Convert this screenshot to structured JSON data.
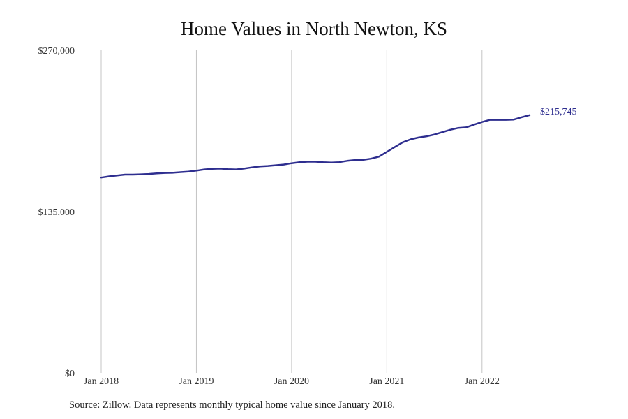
{
  "chart_data": {
    "type": "line",
    "title": "Home Values in North Newton, KS",
    "xlabel": "",
    "ylabel": "",
    "ylim": [
      0,
      270000
    ],
    "y_ticks": [
      0,
      135000,
      270000
    ],
    "y_tick_labels": [
      "$0",
      "$135,000",
      "$270,000"
    ],
    "x_ticks": [
      "2018-01",
      "2019-01",
      "2020-01",
      "2021-01",
      "2022-01"
    ],
    "x_tick_labels": [
      "Jan 2018",
      "Jan 2019",
      "Jan 2020",
      "Jan 2021",
      "Jan 2022"
    ],
    "x_range": [
      "2018-01",
      "2023-03"
    ],
    "grid": "vertical",
    "line_color": "#2e2e8f",
    "end_label": "$215,745",
    "series": [
      {
        "x": [
          "2018-01",
          "2018-02",
          "2018-03",
          "2018-04",
          "2018-05",
          "2018-06",
          "2018-07",
          "2018-08",
          "2018-09",
          "2018-10",
          "2018-11",
          "2018-12",
          "2019-01",
          "2019-02",
          "2019-03",
          "2019-04",
          "2019-05",
          "2019-06",
          "2019-07",
          "2019-08",
          "2019-09",
          "2019-10",
          "2019-11",
          "2019-12",
          "2020-01",
          "2020-02",
          "2020-03",
          "2020-04",
          "2020-05",
          "2020-06",
          "2020-07",
          "2020-08",
          "2020-09",
          "2020-10",
          "2020-11",
          "2020-12",
          "2021-01",
          "2021-02",
          "2021-03",
          "2021-04",
          "2021-05",
          "2021-06",
          "2021-07",
          "2021-08",
          "2021-09",
          "2021-10",
          "2021-11",
          "2021-12",
          "2022-01",
          "2022-02",
          "2022-03",
          "2022-04",
          "2022-05",
          "2022-06",
          "2022-07"
        ],
        "values": [
          163500,
          164500,
          165200,
          166000,
          166000,
          166200,
          166500,
          167000,
          167400,
          167500,
          168000,
          168500,
          169300,
          170300,
          170800,
          171000,
          170500,
          170300,
          171000,
          172000,
          172800,
          173200,
          173800,
          174400,
          175500,
          176300,
          176800,
          176800,
          176300,
          176000,
          176400,
          177500,
          178200,
          178300,
          179300,
          181000,
          185000,
          189000,
          193000,
          195500,
          197000,
          198000,
          199500,
          201500,
          203500,
          205000,
          205500,
          207800,
          210000,
          211800,
          211800,
          211800,
          212000,
          214000,
          215745
        ]
      }
    ]
  },
  "source": "Source: Zillow. Data represents monthly typical home value since January 2018."
}
